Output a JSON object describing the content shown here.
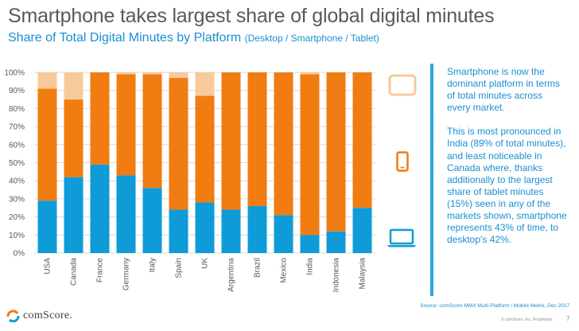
{
  "title": "Smartphone takes largest share of global digital minutes",
  "subtitle": "Share of Total Digital Minutes by Platform",
  "subtitle_note": "(Desktop / Smartphone / Tablet)",
  "chart_data": {
    "type": "bar",
    "stacked": true,
    "categories": [
      "USA",
      "Canada",
      "France",
      "Germany",
      "Italy",
      "Spain",
      "UK",
      "Argentina",
      "Brazil",
      "Mexico",
      "India",
      "Indonesia",
      "Malaysia"
    ],
    "series": [
      {
        "name": "Desktop",
        "color": "#0e9bd8",
        "values": [
          29,
          42,
          49,
          43,
          36,
          24,
          28,
          24,
          26,
          21,
          10,
          12,
          25
        ]
      },
      {
        "name": "Smartphone",
        "color": "#f07c12",
        "values": [
          62,
          43,
          51,
          56,
          63,
          73,
          59,
          76,
          74,
          79,
          89,
          88,
          75
        ]
      },
      {
        "name": "Tablet",
        "color": "#f8c99a",
        "values": [
          9,
          15,
          0,
          1,
          1,
          3,
          13,
          0,
          0,
          0,
          1,
          0,
          0
        ]
      }
    ],
    "yticks": [
      "0%",
      "10%",
      "20%",
      "30%",
      "40%",
      "50%",
      "60%",
      "70%",
      "80%",
      "90%",
      "100%"
    ],
    "ylim": [
      0,
      100
    ],
    "xlabel": "",
    "ylabel": "",
    "legend": "icons-right"
  },
  "callout": {
    "paragraph1": "Smartphone is now the dominant platform in terms of total minutes across every market.",
    "paragraph2": "This is most pronounced in India (89% of total minutes), and least noticeable in Canada where, thanks additionally to the largest share of tablet minutes (15%) seen in any of the markets shown, smartphone represents 43% of time, to desktop's 42%."
  },
  "icons": {
    "tablet": "tablet-icon",
    "smartphone": "smartphone-icon",
    "desktop": "laptop-icon"
  },
  "source": "Source: comScore MMX Multi-Platform / Mobile Metrix, Dec 2017",
  "footer_note": "© comScore, Inc. Proprietary.",
  "page_number": "7",
  "logo_text": "comScore."
}
